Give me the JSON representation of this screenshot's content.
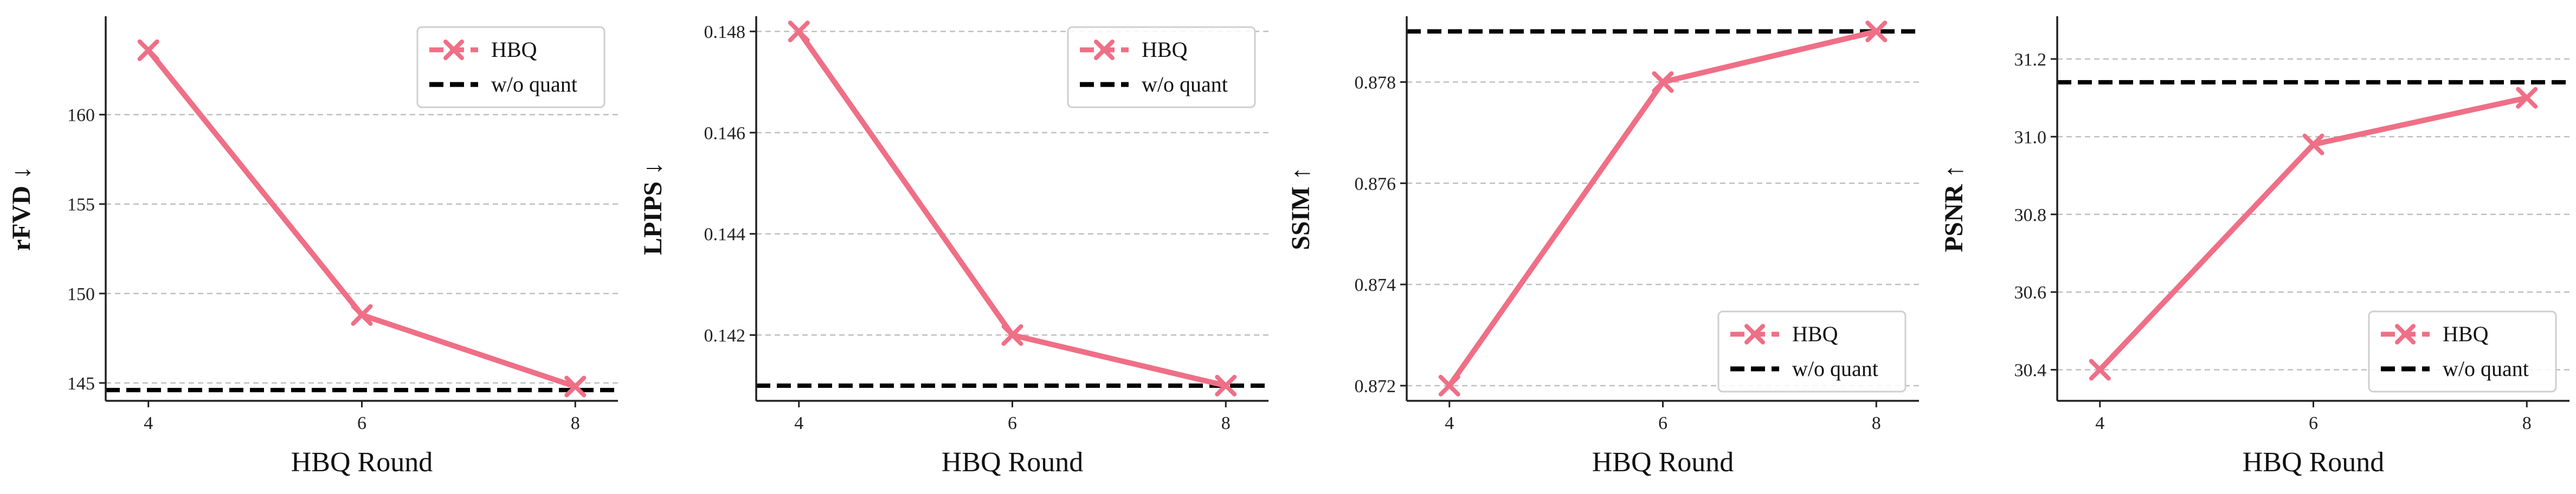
{
  "colors": {
    "hbq": "#ef6f86",
    "baseline": "#000000",
    "grid": "#bfbfbf",
    "axis": "#222222"
  },
  "chart_data": [
    {
      "type": "line",
      "xlabel": "HBQ Round",
      "ylabel": "rFVD ↓",
      "x": [
        4,
        6,
        8
      ],
      "xticks": [
        "4",
        "6",
        "8"
      ],
      "ylim": [
        144,
        165.5
      ],
      "yticks": [
        "145",
        "150",
        "155",
        "160"
      ],
      "ytick_values": [
        145,
        150,
        155,
        160
      ],
      "series": [
        {
          "name": "HBQ",
          "values": [
            163.6,
            148.8,
            144.8
          ]
        }
      ],
      "baseline": {
        "name": "w/o quant",
        "value": 144.6
      },
      "legend": "top-right",
      "grid": "y-dashed"
    },
    {
      "type": "line",
      "xlabel": "HBQ Round",
      "ylabel": "LPIPS ↓",
      "x": [
        4,
        6,
        8
      ],
      "xticks": [
        "4",
        "6",
        "8"
      ],
      "ylim": [
        0.1407,
        0.1483
      ],
      "yticks": [
        "0.142",
        "0.144",
        "0.146",
        "0.148"
      ],
      "ytick_values": [
        0.142,
        0.144,
        0.146,
        0.148
      ],
      "series": [
        {
          "name": "HBQ",
          "values": [
            0.148,
            0.142,
            0.141
          ]
        }
      ],
      "baseline": {
        "name": "w/o quant",
        "value": 0.141
      },
      "legend": "top-right",
      "grid": "y-dashed"
    },
    {
      "type": "line",
      "xlabel": "HBQ Round",
      "ylabel": "SSIM ↑",
      "x": [
        4,
        6,
        8
      ],
      "xticks": [
        "4",
        "6",
        "8"
      ],
      "ylim": [
        0.8717,
        0.8793
      ],
      "yticks": [
        "0.872",
        "0.874",
        "0.876",
        "0.878"
      ],
      "ytick_values": [
        0.872,
        0.874,
        0.876,
        0.878
      ],
      "series": [
        {
          "name": "HBQ",
          "values": [
            0.872,
            0.878,
            0.879
          ]
        }
      ],
      "baseline": {
        "name": "w/o quant",
        "value": 0.879
      },
      "legend": "bottom-right",
      "grid": "y-dashed"
    },
    {
      "type": "line",
      "xlabel": "HBQ Round",
      "ylabel": "PSNR ↑",
      "x": [
        4,
        6,
        8
      ],
      "xticks": [
        "4",
        "6",
        "8"
      ],
      "ylim": [
        30.32,
        31.31
      ],
      "yticks": [
        "30.4",
        "30.6",
        "30.8",
        "31.0",
        "31.2"
      ],
      "ytick_values": [
        30.4,
        30.6,
        30.8,
        31.0,
        31.2
      ],
      "series": [
        {
          "name": "HBQ",
          "values": [
            30.4,
            30.98,
            31.1
          ]
        }
      ],
      "baseline": {
        "name": "w/o quant",
        "value": 31.14
      },
      "legend": "bottom-right",
      "grid": "y-dashed"
    }
  ]
}
